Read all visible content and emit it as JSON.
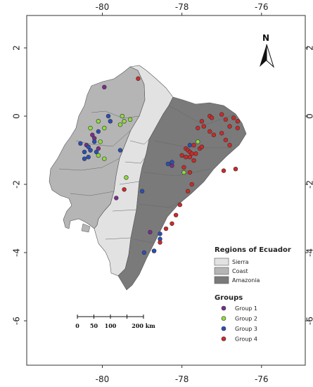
{
  "chart_data": {
    "type": "scatter",
    "title": "",
    "xlabel": "",
    "ylabel": "",
    "xlim": [
      -81.9,
      -74.9
    ],
    "ylim": [
      -7.3,
      2.95
    ],
    "x_ticks": [
      {
        "value": -80,
        "label": "-80"
      },
      {
        "value": -78,
        "label": "-78"
      },
      {
        "value": -76,
        "label": "-76"
      }
    ],
    "y_ticks": [
      {
        "value": 2,
        "label": "2"
      },
      {
        "value": 0,
        "label": "0"
      },
      {
        "value": -2,
        "label": "-2"
      },
      {
        "value": -4,
        "label": "-4"
      },
      {
        "value": -6,
        "label": "-6"
      }
    ],
    "north_label": "N",
    "regions_legend": {
      "title": "Regions of Ecuador",
      "items": [
        {
          "label": "Sierra",
          "color": "#e2e2e2"
        },
        {
          "label": "Coast",
          "color": "#b5b5b5"
        },
        {
          "label": "Amazonia",
          "color": "#7a7a7a"
        }
      ]
    },
    "groups_legend": {
      "title": "Groups",
      "items": [
        {
          "label": "Group 1",
          "color": "#7b2d8b"
        },
        {
          "label": "Group 2",
          "color": "#8edb3a"
        },
        {
          "label": "Group 3",
          "color": "#2a4fb8"
        },
        {
          "label": "Group 4",
          "color": "#d02828"
        }
      ]
    },
    "scale_bar": {
      "labels": [
        "0",
        "50",
        "100",
        "200 km"
      ],
      "km": [
        0,
        50,
        100,
        200
      ]
    },
    "series": [
      {
        "name": "Group 1",
        "color": "#7b2d8b",
        "points": [
          [
            -79.95,
            0.85
          ],
          [
            -80.25,
            -0.55
          ],
          [
            -80.2,
            -0.65
          ],
          [
            -80.4,
            -0.85
          ],
          [
            -80.1,
            -0.95
          ],
          [
            -79.65,
            -2.4
          ],
          [
            -78.8,
            -3.4
          ],
          [
            -78.25,
            -1.45
          ]
        ]
      },
      {
        "name": "Group 2",
        "color": "#8edb3a",
        "points": [
          [
            -80.1,
            -0.15
          ],
          [
            -80.3,
            -0.35
          ],
          [
            -79.5,
            0.0
          ],
          [
            -79.55,
            -0.25
          ],
          [
            -79.45,
            -0.15
          ],
          [
            -79.3,
            -0.1
          ],
          [
            -79.95,
            -0.35
          ],
          [
            -79.95,
            -1.25
          ],
          [
            -80.05,
            -0.75
          ],
          [
            -80.3,
            -1.0
          ],
          [
            -80.1,
            -1.15
          ],
          [
            -79.4,
            -1.8
          ],
          [
            -77.6,
            -0.75
          ],
          [
            -77.95,
            -1.65
          ],
          [
            -78.7,
            -3.95
          ]
        ]
      },
      {
        "name": "Group 3",
        "color": "#2a4fb8",
        "points": [
          [
            -79.85,
            0.0
          ],
          [
            -79.8,
            -0.15
          ],
          [
            -80.1,
            -0.45
          ],
          [
            -80.2,
            -0.75
          ],
          [
            -80.55,
            -0.8
          ],
          [
            -80.35,
            -0.9
          ],
          [
            -80.3,
            -1.0
          ],
          [
            -80.45,
            -1.05
          ],
          [
            -80.35,
            -1.2
          ],
          [
            -80.45,
            -1.25
          ],
          [
            -80.15,
            -1.05
          ],
          [
            -79.55,
            -1.0
          ],
          [
            -79.0,
            -2.2
          ],
          [
            -78.35,
            -1.4
          ],
          [
            -78.25,
            -1.35
          ],
          [
            -78.55,
            -3.45
          ],
          [
            -78.55,
            -3.6
          ],
          [
            -78.7,
            -3.95
          ],
          [
            -78.95,
            -4.0
          ],
          [
            -77.8,
            -0.85
          ]
        ]
      },
      {
        "name": "Group 4",
        "color": "#d02828",
        "points": [
          [
            -79.1,
            1.1
          ],
          [
            -77.3,
            0.0
          ],
          [
            -77.25,
            -0.05
          ],
          [
            -77.0,
            0.05
          ],
          [
            -76.9,
            -0.1
          ],
          [
            -76.7,
            -0.05
          ],
          [
            -76.6,
            -0.15
          ],
          [
            -76.8,
            -0.3
          ],
          [
            -76.6,
            -0.35
          ],
          [
            -77.5,
            -0.15
          ],
          [
            -77.45,
            -0.3
          ],
          [
            -77.6,
            -0.35
          ],
          [
            -77.3,
            -0.45
          ],
          [
            -77.2,
            -0.55
          ],
          [
            -77.0,
            -0.5
          ],
          [
            -76.9,
            -0.7
          ],
          [
            -76.8,
            -0.85
          ],
          [
            -77.9,
            -0.95
          ],
          [
            -77.85,
            -1.0
          ],
          [
            -77.8,
            -1.05
          ],
          [
            -77.75,
            -1.1
          ],
          [
            -77.8,
            -1.2
          ],
          [
            -77.7,
            -1.3
          ],
          [
            -77.9,
            -1.2
          ],
          [
            -78.0,
            -1.15
          ],
          [
            -77.65,
            -1.1
          ],
          [
            -77.55,
            -0.95
          ],
          [
            -77.5,
            -0.9
          ],
          [
            -77.7,
            -0.85
          ],
          [
            -77.95,
            -1.5
          ],
          [
            -77.8,
            -1.65
          ],
          [
            -77.75,
            -2.0
          ],
          [
            -77.85,
            -2.2
          ],
          [
            -78.05,
            -2.6
          ],
          [
            -78.15,
            -2.9
          ],
          [
            -78.25,
            -3.15
          ],
          [
            -78.4,
            -3.3
          ],
          [
            -78.55,
            -3.7
          ],
          [
            -76.65,
            -1.55
          ],
          [
            -76.95,
            -1.6
          ],
          [
            -79.45,
            -2.15
          ]
        ]
      }
    ]
  }
}
